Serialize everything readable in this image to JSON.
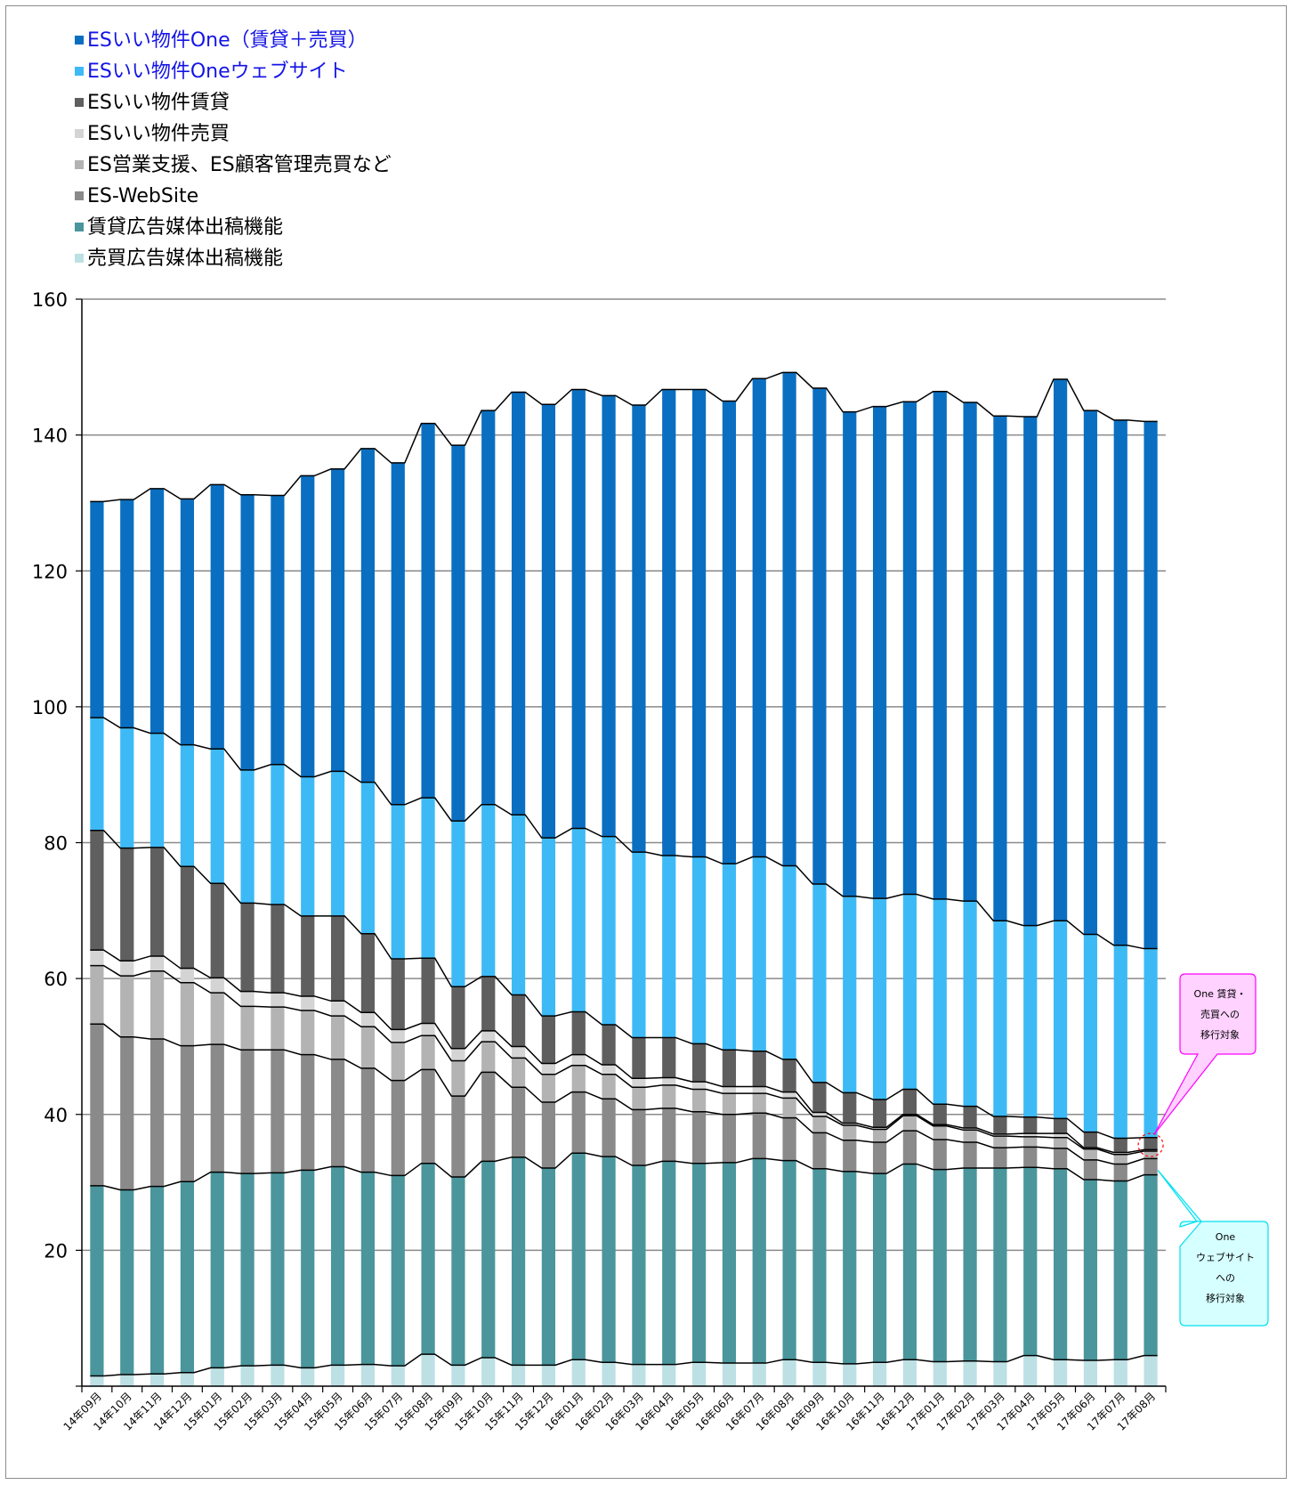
{
  "chart_data": {
    "type": "bar",
    "stacked": true,
    "categories": [
      "14年09月",
      "14年10月",
      "14年11月",
      "14年12月",
      "15年01月",
      "15年02月",
      "15年03月",
      "15年04月",
      "15年05月",
      "15年06月",
      "15年07月",
      "15年08月",
      "15年09月",
      "15年10月",
      "15年11月",
      "15年12月",
      "16年01月",
      "16年02月",
      "16年03月",
      "16年04月",
      "16年05月",
      "16年06月",
      "16年07月",
      "16年08月",
      "16年09月",
      "16年10月",
      "16年11月",
      "16年12月",
      "17年01月",
      "17年02月",
      "17年03月",
      "17年04月",
      "17年05月",
      "17年06月",
      "17年07月",
      "17年08月"
    ],
    "ylim": [
      0,
      160
    ],
    "yticks": [
      20,
      40,
      60,
      80,
      100,
      120,
      140,
      160
    ],
    "grid": true,
    "legend_position": "top-left",
    "series": [
      {
        "name": "売買広告媒体出稿機能",
        "color": "#bce0e4",
        "values": [
          1.5,
          1.7,
          1.8,
          2,
          2.7,
          3,
          3.1,
          2.7,
          3.1,
          3.2,
          3,
          4.7,
          3.1,
          4.2,
          3.1,
          3.1,
          3.9,
          3.5,
          3.2,
          3.2,
          3.5,
          3.4,
          3.4,
          3.9,
          3.5,
          3.3,
          3.5,
          3.9,
          3.6,
          3.7,
          3.6,
          4.5,
          3.9,
          3.8,
          3.9,
          4.5
        ]
      },
      {
        "name": "賃貸広告媒体出稿機能",
        "color": "#4a969c",
        "values": [
          28,
          27.2,
          27.6,
          28.1,
          28.8,
          28.3,
          28.3,
          29.1,
          29.2,
          28.3,
          28,
          28.1,
          27.7,
          28.9,
          30.6,
          29,
          30.4,
          30.3,
          29.3,
          29.9,
          29.3,
          29.5,
          30.1,
          29.3,
          28.5,
          28.3,
          27.8,
          28.8,
          28.3,
          28.4,
          28.5,
          27.7,
          28.1,
          26.6,
          26.3,
          26.6
        ]
      },
      {
        "name": "ES-WebSite",
        "color": "#8a8a8a",
        "values": [
          23.8,
          22.5,
          21.7,
          20,
          18.8,
          18.2,
          18.1,
          17,
          15.8,
          15.3,
          14,
          13.8,
          11.9,
          13.1,
          10.3,
          9.7,
          9,
          8.5,
          8.2,
          7.8,
          7.6,
          7.1,
          6.7,
          6.3,
          5.3,
          4.6,
          4.6,
          4.9,
          4.4,
          3.8,
          3,
          3,
          3,
          2.9,
          2.5,
          2.4
        ]
      },
      {
        "name": "ES営業支援、ES顧客管理売買など",
        "color": "#b3b3b3",
        "values": [
          8.6,
          9,
          10,
          9.3,
          7.6,
          6.4,
          6.3,
          6.5,
          6.4,
          6.1,
          5.6,
          5,
          5.2,
          4.5,
          4.3,
          4.1,
          3.9,
          3.6,
          3.3,
          3.4,
          3.3,
          3.1,
          2.9,
          2.9,
          2.4,
          2.2,
          1.9,
          2.2,
          2,
          1.8,
          1.7,
          1.5,
          1.6,
          1.6,
          1.4,
          1.1
        ]
      },
      {
        "name": "ESいい物件売買",
        "color": "#d4d4d4",
        "values": [
          2.3,
          2.2,
          2.2,
          2.1,
          2.2,
          2.2,
          2.1,
          2.1,
          2.2,
          2.1,
          1.9,
          1.8,
          1.8,
          1.6,
          1.7,
          1.6,
          1.6,
          1.4,
          1.3,
          1.1,
          1.1,
          1,
          1,
          0.9,
          0.6,
          0.3,
          0.3,
          0.2,
          0.2,
          0.3,
          0.3,
          0.5,
          0.6,
          0.2,
          0.3,
          0.2
        ]
      },
      {
        "name": "ESいい物件賃貸",
        "color": "#5f5f5f",
        "values": [
          17.6,
          16.6,
          16,
          15,
          13.9,
          13,
          13,
          11.8,
          12.5,
          11.6,
          10.4,
          9.6,
          9.1,
          8,
          7.6,
          7,
          6.3,
          5.9,
          6,
          5.9,
          5.6,
          5.4,
          5.2,
          4.8,
          4.4,
          4.5,
          4.1,
          3.7,
          3,
          3.2,
          2.6,
          2.4,
          2.2,
          2.3,
          2.1,
          1.8
        ]
      },
      {
        "name": "ESいい物件Oneウェブサイト",
        "color": "#3dbaf6",
        "values": [
          16.6,
          17.7,
          16.8,
          17.9,
          19.8,
          19.6,
          20.6,
          20.5,
          21.3,
          22.3,
          22.7,
          23.6,
          24.4,
          25.3,
          26.5,
          26.2,
          27,
          27.7,
          27.3,
          26.8,
          27.5,
          27.4,
          28.6,
          28.5,
          29.2,
          28.9,
          29.6,
          28.7,
          30.2,
          30.2,
          28.8,
          28.2,
          29.1,
          29.1,
          28.4,
          27.8
        ]
      },
      {
        "name": "ESいい物件One（賃貸＋売買）",
        "color": "#0a6fc1",
        "values": [
          31.8,
          33.6,
          36,
          36.2,
          38.9,
          40.5,
          39.6,
          44.3,
          44.5,
          49.1,
          50.3,
          55.1,
          55.3,
          58,
          62.2,
          63.8,
          64.6,
          64.9,
          65.8,
          68.6,
          68.8,
          68.1,
          70.4,
          72.6,
          73,
          71.3,
          72.4,
          72.5,
          74.7,
          73.4,
          74.3,
          74.9,
          79.7,
          77.1,
          77.3,
          77.6
        ]
      }
    ]
  },
  "legend": [
    {
      "label": "ESいい物件One（賃貸＋売買）",
      "color": "#0a6fc1",
      "text_color": "blue"
    },
    {
      "label": "ESいい物件Oneウェブサイト",
      "color": "#3dbaf6",
      "text_color": "blue"
    },
    {
      "label": "ESいい物件賃貸",
      "color": "#5f5f5f",
      "text_color": "black"
    },
    {
      "label": "ESいい物件売買",
      "color": "#d4d4d4",
      "text_color": "black"
    },
    {
      "label": "ES営業支援、ES顧客管理売買など",
      "color": "#b3b3b3",
      "text_color": "black"
    },
    {
      "label": "ES-WebSite",
      "color": "#8a8a8a",
      "text_color": "black"
    },
    {
      "label": "賃貸広告媒体出稿機能",
      "color": "#4a969c",
      "text_color": "black"
    },
    {
      "label": "売買広告媒体出稿機能",
      "color": "#bce0e4",
      "text_color": "black"
    }
  ],
  "annotations": {
    "one_chintai_baibai": {
      "lines": [
        "One 賃貸・",
        "売買への",
        "移行対象"
      ],
      "color": "#ff00ff"
    },
    "one_website": {
      "lines": [
        "One",
        "ウェブサイト",
        "への",
        "移行対象"
      ],
      "color": "#00e0f0"
    }
  }
}
